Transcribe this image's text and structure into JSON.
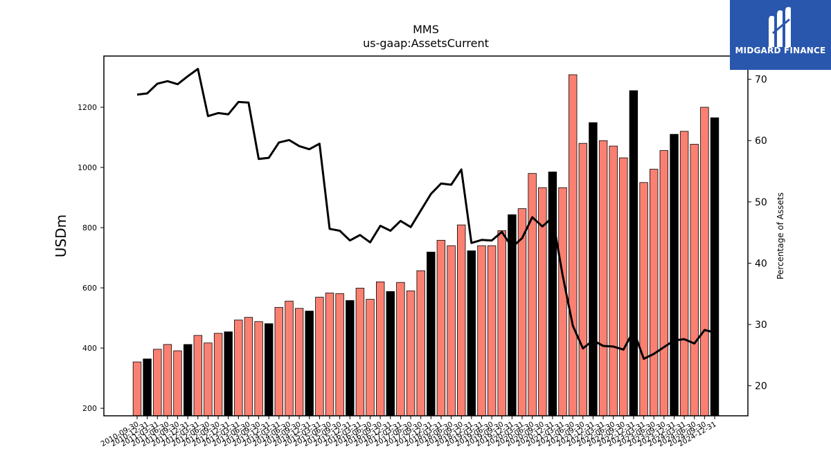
{
  "logo": {
    "text": "MIDGARD FINANCE",
    "background": "#2957ad"
  },
  "chart_data": {
    "type": "bar",
    "title": "MMS",
    "subtitle": "us-gaap:AssetsCurrent",
    "ylabel": "USDm",
    "y2label": "Percentage of Assets",
    "ylim": [
      175,
      1370
    ],
    "y2lim": [
      15.1,
      73.8
    ],
    "yticks": [
      200,
      400,
      600,
      800,
      1000,
      1200
    ],
    "y2ticks": [
      20,
      30,
      40,
      50,
      60,
      70
    ],
    "colors": {
      "q4": "#000000",
      "other": "#fa8072",
      "line": "#000000"
    },
    "categories": [
      "2010-09-30",
      "2010-12-31",
      "2011-03-31",
      "2011-06-30",
      "2011-09-30",
      "2011-12-31",
      "2012-03-31",
      "2012-06-30",
      "2012-09-30",
      "2012-12-31",
      "2013-03-31",
      "2013-06-30",
      "2013-09-30",
      "2013-12-31",
      "2014-03-31",
      "2014-06-30",
      "2014-09-30",
      "2014-12-31",
      "2015-03-31",
      "2015-06-30",
      "2015-09-30",
      "2015-12-31",
      "2016-03-31",
      "2016-06-30",
      "2016-09-30",
      "2016-12-31",
      "2017-03-31",
      "2017-06-30",
      "2017-09-30",
      "2017-12-31",
      "2018-03-31",
      "2018-06-30",
      "2018-09-30",
      "2018-12-31",
      "2019-03-31",
      "2019-06-30",
      "2019-09-30",
      "2019-12-31",
      "2020-03-31",
      "2020-06-30",
      "2020-09-30",
      "2020-12-31",
      "2021-03-31",
      "2021-06-30",
      "2021-09-30",
      "2021-12-31",
      "2022-03-31",
      "2022-06-30",
      "2022-09-30",
      "2022-12-31",
      "2023-03-31",
      "2023-06-30",
      "2023-09-30",
      "2023-12-31",
      "2024-03-31",
      "2024-06-30",
      "2024-09-30",
      "2024-12-31"
    ],
    "series": [
      {
        "values": [
          354,
          364,
          396,
          412,
          391,
          412,
          442,
          417,
          449,
          454,
          493,
          502,
          488,
          481,
          535,
          556,
          532,
          523,
          569,
          583,
          581,
          558,
          599,
          562,
          620,
          588,
          618,
          590,
          657,
          719,
          758,
          740,
          809,
          723,
          740,
          740,
          790,
          843,
          863,
          980,
          933,
          985,
          933,
          1308,
          1080,
          1149,
          1089,
          1071,
          1032,
          1255,
          950,
          994,
          1056,
          1110,
          1120,
          1077,
          1200,
          1165
        ]
      },
      {
        "values": [
          67.5,
          67.7,
          69.3,
          69.7,
          69.2,
          70.5,
          71.7,
          64.0,
          64.5,
          64.3,
          66.3,
          66.2,
          57.0,
          57.2,
          59.7,
          60.1,
          59.1,
          58.6,
          59.5,
          45.6,
          45.3,
          43.7,
          44.6,
          43.4,
          46.1,
          45.3,
          46.9,
          45.9,
          48.6,
          51.3,
          53.0,
          52.8,
          55.3,
          43.3,
          43.8,
          43.7,
          45.1,
          42.6,
          44.1,
          47.5,
          46.0,
          47.5,
          38.0,
          29.8,
          26.1,
          27.4,
          26.5,
          26.4,
          25.9,
          29.0,
          24.4,
          25.2,
          26.3,
          27.4,
          27.6,
          26.9,
          29.1,
          28.7
        ]
      }
    ]
  }
}
